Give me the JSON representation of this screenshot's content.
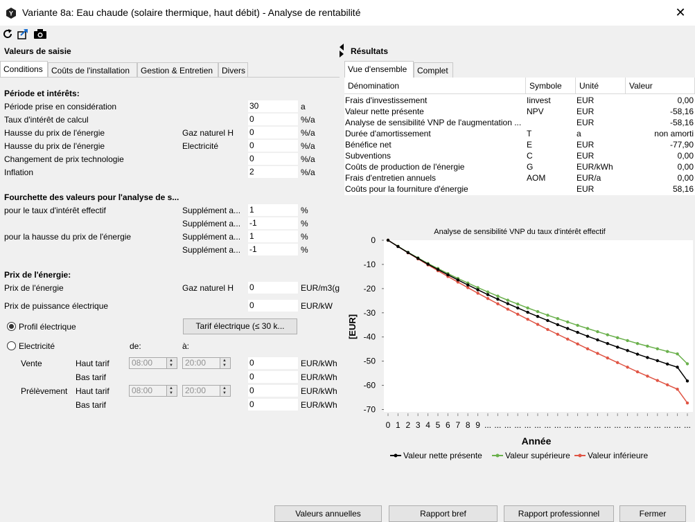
{
  "window": {
    "title": "Variante 8a: Eau chaude (solaire thermique, haut débit) - Analyse de rentabilité",
    "close_glyph": "✕"
  },
  "toolbar": {
    "icons": [
      "refresh-icon",
      "export-icon",
      "camera-icon"
    ]
  },
  "left": {
    "heading": "Valeurs de saisie",
    "tabs": [
      "Conditions",
      "Coûts de l'installation",
      "Gestion & Entretien",
      "Divers"
    ],
    "periode": {
      "heading": "Période et intérêts:",
      "rows": [
        {
          "label": "Période prise en considération",
          "extra": "",
          "value": "30",
          "unit": "a"
        },
        {
          "label": "Taux d'intérêt de calcul",
          "extra": "",
          "value": "0",
          "unit": "%/a"
        },
        {
          "label": "Hausse du prix de l'énergie",
          "extra": "Gaz naturel H",
          "value": "0",
          "unit": "%/a"
        },
        {
          "label": "Hausse du prix de l'énergie",
          "extra": "Electricité",
          "value": "0",
          "unit": "%/a"
        },
        {
          "label": "Changement de prix technologie",
          "extra": "",
          "value": "0",
          "unit": "%/a"
        },
        {
          "label": "Inflation",
          "extra": "",
          "value": "2",
          "unit": "%/a"
        }
      ]
    },
    "fourchette": {
      "heading": "Fourchette des valeurs pour l'analyse de s...",
      "rows": [
        {
          "label": "pour le taux d'intérêt effectif",
          "extra": "Supplément a...",
          "value": "1",
          "unit": "%"
        },
        {
          "label": "",
          "extra": "Supplément a...",
          "value": "-1",
          "unit": "%"
        },
        {
          "label": "pour la hausse du prix de l'énergie",
          "extra": "Supplément a...",
          "value": "1",
          "unit": "%"
        },
        {
          "label": "",
          "extra": "Supplément a...",
          "value": "-1",
          "unit": "%"
        }
      ]
    },
    "prix": {
      "heading": "Prix de l'énergie:",
      "energie_label": "Prix de l'énergie",
      "energie_extra": "Gaz naturel H",
      "energie_value": "0",
      "energie_unit": "EUR/m3(g",
      "puissance_label": "Prix de puissance électrique",
      "puissance_value": "0",
      "puissance_unit": "EUR/kW"
    },
    "profil": {
      "label": "Profil électrique",
      "button": "Tarif électrique (≤ 30 k..."
    },
    "electricite": {
      "label": "Electricité",
      "de": "de:",
      "a": "à:",
      "vente": "Vente",
      "prelevement": "Prélèvement",
      "haut_tarif": "Haut tarif",
      "bas_tarif": "Bas tarif",
      "time_from": "08:00",
      "time_to": "20:00",
      "value": "0",
      "unit": "EUR/kWh"
    }
  },
  "right": {
    "heading": "Résultats",
    "tabs": [
      "Vue d'ensemble",
      "Complet"
    ],
    "columns": [
      "Dénomination",
      "Symbole",
      "Unité",
      "Valeur"
    ],
    "rows": [
      [
        "Frais d'investissement",
        "Iinvest",
        "EUR",
        "0,00"
      ],
      [
        "Valeur nette présente",
        "NPV",
        "EUR",
        "-58,16"
      ],
      [
        "Analyse de sensibilité VNP de l'augmentation ...",
        "",
        "EUR",
        "-58,16"
      ],
      [
        "Durée d'amortissement",
        "T",
        "a",
        "non amorti"
      ],
      [
        "Bénéfice net",
        "E",
        "EUR",
        "-77,90"
      ],
      [
        "Subventions",
        "C",
        "EUR",
        "0,00"
      ],
      [
        "Coûts de production de l'énergie",
        "G",
        "EUR/kWh",
        "0,00"
      ],
      [
        "Frais d'entretien annuels",
        "AOM",
        "EUR/a",
        "0,00"
      ],
      [
        "Coûts pour la fourniture d'énergie",
        "",
        "EUR",
        "58,16"
      ]
    ]
  },
  "chart_data": {
    "type": "line",
    "title": "Analyse de sensibilité VNP du taux d'intérêt effectif",
    "xlabel": "Année",
    "ylabel": "[EUR]",
    "x_tick_labels": [
      "0",
      "1",
      "2",
      "3",
      "4",
      "5",
      "6",
      "7",
      "8",
      "9",
      "..."
    ],
    "x": [
      0,
      1,
      2,
      3,
      4,
      5,
      6,
      7,
      8,
      9,
      10,
      11,
      12,
      13,
      14,
      15,
      16,
      17,
      18,
      19,
      20,
      21,
      22,
      23,
      24,
      25,
      26,
      27,
      28,
      29,
      30
    ],
    "yticks": [
      0,
      -10,
      -20,
      -30,
      -40,
      -50,
      -60,
      -70
    ],
    "ylim": [
      -71,
      0
    ],
    "grid": false,
    "legend": "bottom",
    "series": [
      {
        "name": "Valeur nette présente",
        "color": "#000000",
        "values": [
          0,
          -2.6,
          -5.1,
          -7.5,
          -9.9,
          -12.1,
          -14.3,
          -16.4,
          -18.5,
          -20.5,
          -22.5,
          -24.4,
          -26.2,
          -28,
          -29.8,
          -31.5,
          -33.2,
          -34.9,
          -36.5,
          -38.1,
          -39.7,
          -41.2,
          -42.7,
          -44.2,
          -45.6,
          -47.1,
          -48.5,
          -49.8,
          -51.2,
          -52.5,
          -58.2
        ]
      },
      {
        "name": "Valeur supérieure",
        "color": "#6ab04c",
        "values": [
          0,
          -2.5,
          -5,
          -7.3,
          -9.6,
          -11.7,
          -13.8,
          -15.8,
          -17.7,
          -19.6,
          -21.4,
          -23.1,
          -24.8,
          -26.4,
          -28,
          -29.5,
          -31,
          -32.4,
          -33.8,
          -35.2,
          -36.5,
          -37.8,
          -39.1,
          -40.3,
          -41.5,
          -42.7,
          -43.8,
          -44.9,
          -46,
          -47,
          -51.1
        ]
      },
      {
        "name": "Valeur inférieure",
        "color": "#e05545",
        "values": [
          0,
          -2.6,
          -5.2,
          -7.7,
          -10.2,
          -12.6,
          -15,
          -17.3,
          -19.6,
          -21.9,
          -24.1,
          -26.3,
          -28.5,
          -30.6,
          -32.7,
          -34.8,
          -36.9,
          -38.9,
          -40.9,
          -42.9,
          -44.9,
          -46.8,
          -48.7,
          -50.6,
          -52.5,
          -54.4,
          -56.2,
          -58,
          -59.8,
          -61.6,
          -67.3
        ]
      }
    ]
  },
  "buttons": [
    "Valeurs annuelles",
    "Rapport bref",
    "Rapport professionnel",
    "Fermer"
  ]
}
